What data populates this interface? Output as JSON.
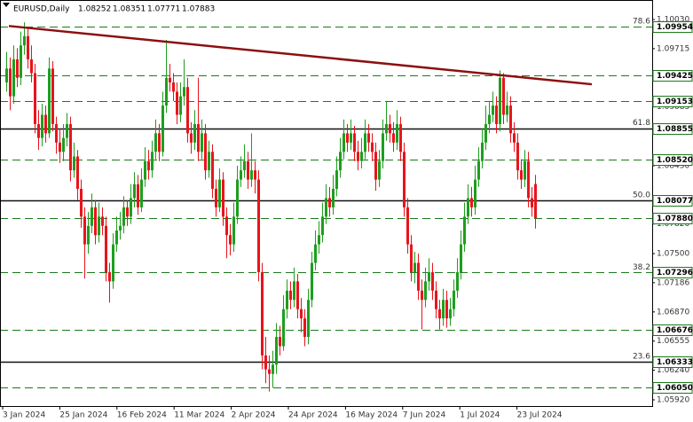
{
  "chart_data": {
    "type": "candlestick",
    "title": "EURUSD,Daily",
    "header_ohlc": [
      1.08252,
      1.08351,
      1.07771,
      1.07883
    ],
    "up_color": "#1e9e1e",
    "down_color": "#e8141c",
    "ylim": [
      1.0592,
      1.1003
    ],
    "yticks": [
      {
        "value": 1.1003,
        "label": "1.10030"
      },
      1.09715,
      1.09085,
      {
        "value": 1.0845,
        "label": "1.08450"
      },
      {
        "value": 1.0782,
        "label": "1.07820"
      },
      {
        "value": 1.075,
        "label": "1.07500"
      },
      1.07186,
      {
        "value": 1.0687,
        "label": "1.06870"
      },
      1.06555,
      {
        "value": 1.0624,
        "label": "1.06240"
      },
      {
        "value": 1.0592,
        "label": "1.05920"
      }
    ],
    "x_labels": [
      "3 Jan 2024",
      "25 Jan 2024",
      "16 Feb 2024",
      "11 Mar 2024",
      "2 Apr 2024",
      "24 Apr 2024",
      "16 May 2024",
      "7 Jun 2024",
      "1 Jul 2024",
      "23 Jul 2024"
    ],
    "levels": [
      {
        "price": 1.09954,
        "style": "dashed"
      },
      {
        "price": 1.09425,
        "style": "dashed"
      },
      {
        "price": 1.09153,
        "style": "dashed"
      },
      {
        "price": 1.08855,
        "style": "solid"
      },
      {
        "price": {
          "value": 1.0852,
          "label": "1.08520"
        },
        "style": "dashed"
      },
      {
        "price": 1.08077,
        "style": "solid"
      },
      {
        "price": {
          "value": 1.0788,
          "label": "1.07880"
        },
        "style": "dashed"
      },
      {
        "price": 1.07296,
        "style": "dashed"
      },
      {
        "price": 1.06676,
        "style": "dashed"
      },
      {
        "price": 1.06333,
        "style": "solid"
      },
      {
        "price": {
          "value": 1.0605,
          "label": "1.06050"
        },
        "style": "dashed"
      }
    ],
    "fib_levels": [
      {
        "level": 78.6,
        "price": 1.09954
      },
      {
        "level": 61.8,
        "price": 1.08855
      },
      {
        "level": {
          "value": 50,
          "label": "50.0"
        },
        "price": 1.08077
      },
      {
        "level": 38.2,
        "price": 1.07296
      },
      {
        "level": 23.6,
        "price": 1.06333
      }
    ],
    "trendline": {
      "y": [
        1.0996,
        1.0933
      ],
      "color": "#8b1010"
    },
    "candles": [
      [
        1.0935,
        1.0968,
        1.0925,
        1.095
      ],
      [
        1.095,
        1.0962,
        1.0905,
        1.092
      ],
      [
        1.092,
        1.0975,
        1.0912,
        1.096
      ],
      [
        1.096,
        1.0972,
        1.093,
        1.094
      ],
      [
        1.094,
        1.099,
        1.0932,
        1.0975
      ],
      [
        1.0975,
        1.1,
        1.0965,
        1.0985
      ],
      [
        1.0985,
        1.0995,
        1.095,
        1.096
      ],
      [
        1.096,
        1.0975,
        1.0935,
        1.0945
      ],
      [
        1.0945,
        1.0955,
        1.088,
        1.089
      ],
      [
        1.089,
        1.0905,
        1.0862,
        1.0875
      ],
      [
        1.0875,
        1.0912,
        1.0866,
        1.09
      ],
      [
        1.09,
        1.091,
        1.087,
        1.088
      ],
      [
        1.088,
        1.0962,
        1.0875,
        1.095
      ],
      [
        1.095,
        1.0958,
        1.0882,
        1.089
      ],
      [
        1.089,
        1.0898,
        1.0858,
        1.087
      ],
      [
        1.087,
        1.0885,
        1.0848,
        1.086
      ],
      [
        1.086,
        1.089,
        1.085,
        1.0875
      ],
      [
        1.0875,
        1.0902,
        1.0866,
        1.089
      ],
      [
        1.089,
        1.0898,
        1.0828,
        1.084
      ],
      [
        1.084,
        1.087,
        1.0832,
        1.0855
      ],
      [
        1.0855,
        1.0862,
        1.0808,
        1.082
      ],
      [
        1.082,
        1.083,
        1.0778,
        1.079
      ],
      [
        1.079,
        1.08,
        1.0723,
        1.076
      ],
      [
        1.076,
        1.0795,
        1.075,
        1.078
      ],
      [
        1.078,
        1.0815,
        1.0772,
        1.08
      ],
      [
        1.08,
        1.0808,
        1.076,
        1.077
      ],
      [
        1.077,
        1.0805,
        1.0762,
        1.079
      ],
      [
        1.079,
        1.08,
        1.077,
        1.078
      ],
      [
        1.078,
        1.079,
        1.072,
        1.073
      ],
      [
        1.073,
        1.074,
        1.0697,
        1.072
      ],
      [
        1.072,
        1.0772,
        1.0712,
        1.076
      ],
      [
        1.076,
        1.079,
        1.0752,
        1.0775
      ],
      [
        1.0775,
        1.0795,
        1.0765,
        1.078
      ],
      [
        1.078,
        1.0812,
        1.0772,
        1.08
      ],
      [
        1.08,
        1.0808,
        1.078,
        1.079
      ],
      [
        1.079,
        1.0825,
        1.0782,
        1.081
      ],
      [
        1.081,
        1.0838,
        1.08,
        1.0825
      ],
      [
        1.0825,
        1.0835,
        1.0792,
        1.08
      ],
      [
        1.08,
        1.0842,
        1.0795,
        1.083
      ],
      [
        1.083,
        1.0865,
        1.0822,
        1.085
      ],
      [
        1.085,
        1.0862,
        1.083,
        1.084
      ],
      [
        1.084,
        1.0872,
        1.0832,
        1.086
      ],
      [
        1.086,
        1.0895,
        1.0852,
        1.088
      ],
      [
        1.088,
        1.089,
        1.085,
        1.086
      ],
      [
        1.086,
        1.0925,
        1.0855,
        1.091
      ],
      [
        1.091,
        1.0981,
        1.0902,
        1.094
      ],
      [
        1.094,
        1.0955,
        1.0925,
        1.0935
      ],
      [
        1.0935,
        1.0945,
        1.0915,
        1.0925
      ],
      [
        1.0925,
        1.0935,
        1.089,
        1.09
      ],
      [
        1.09,
        1.0935,
        1.0892,
        1.092
      ],
      [
        1.092,
        1.096,
        1.091,
        1.093
      ],
      [
        1.093,
        1.094,
        1.087,
        1.088
      ],
      [
        1.088,
        1.0892,
        1.0858,
        1.087
      ],
      [
        1.087,
        1.0905,
        1.0862,
        1.089
      ],
      [
        1.089,
        1.094,
        1.085,
        1.086
      ],
      [
        1.086,
        1.0895,
        1.0852,
        1.088
      ],
      [
        1.088,
        1.089,
        1.083,
        1.084
      ],
      [
        1.084,
        1.0872,
        1.0832,
        1.086
      ],
      [
        1.086,
        1.0868,
        1.081,
        1.082
      ],
      [
        1.082,
        1.083,
        1.079,
        1.08
      ],
      [
        1.08,
        1.0842,
        1.0795,
        1.083
      ],
      [
        1.083,
        1.0838,
        1.078,
        1.079
      ],
      [
        1.079,
        1.08,
        1.0745,
        1.077
      ],
      [
        1.077,
        1.0782,
        1.0748,
        1.076
      ],
      [
        1.076,
        1.0805,
        1.0752,
        1.079
      ],
      [
        1.079,
        1.0845,
        1.0782,
        1.083
      ],
      [
        1.083,
        1.0855,
        1.0822,
        1.084
      ],
      [
        1.084,
        1.0868,
        1.0832,
        1.085
      ],
      [
        1.085,
        1.086,
        1.082,
        1.083
      ],
      [
        1.083,
        1.088,
        1.0822,
        1.084
      ],
      [
        1.084,
        1.085,
        1.0815,
        1.083
      ],
      [
        1.083,
        1.084,
        1.072,
        1.073
      ],
      [
        1.073,
        1.074,
        1.0625,
        1.064
      ],
      [
        1.064,
        1.066,
        1.061,
        1.0625
      ],
      [
        1.0625,
        1.064,
        1.0601,
        1.062
      ],
      [
        1.062,
        1.0645,
        1.0605,
        1.063
      ],
      [
        1.063,
        1.0675,
        1.062,
        1.066
      ],
      [
        1.066,
        1.0672,
        1.064,
        1.065
      ],
      [
        1.065,
        1.0705,
        1.0645,
        1.069
      ],
      [
        1.069,
        1.0722,
        1.068,
        1.071
      ],
      [
        1.071,
        1.072,
        1.069,
        1.07
      ],
      [
        1.07,
        1.0735,
        1.0692,
        1.072
      ],
      [
        1.072,
        1.0728,
        1.068,
        1.069
      ],
      [
        1.069,
        1.0702,
        1.0665,
        1.068
      ],
      [
        1.068,
        1.069,
        1.065,
        1.066
      ],
      [
        1.066,
        1.0712,
        1.0652,
        1.07
      ],
      [
        1.07,
        1.0752,
        1.0692,
        1.074
      ],
      [
        1.074,
        1.0775,
        1.0732,
        1.076
      ],
      [
        1.076,
        1.0785,
        1.075,
        1.077
      ],
      [
        1.077,
        1.0805,
        1.0762,
        1.079
      ],
      [
        1.079,
        1.0825,
        1.0782,
        1.081
      ],
      [
        1.081,
        1.0822,
        1.079,
        1.08
      ],
      [
        1.08,
        1.0835,
        1.0792,
        1.082
      ],
      [
        1.082,
        1.0855,
        1.0812,
        1.084
      ],
      [
        1.084,
        1.0875,
        1.0832,
        1.086
      ],
      [
        1.086,
        1.0895,
        1.0852,
        1.088
      ],
      [
        1.088,
        1.089,
        1.086,
        1.087
      ],
      [
        1.087,
        1.0895,
        1.0862,
        1.088
      ],
      [
        1.088,
        1.0888,
        1.085,
        1.086
      ],
      [
        1.086,
        1.0872,
        1.084,
        1.085
      ],
      [
        1.085,
        1.0875,
        1.0842,
        1.086
      ],
      [
        1.086,
        1.0895,
        1.0852,
        1.088
      ],
      [
        1.088,
        1.089,
        1.086,
        1.087
      ],
      [
        1.087,
        1.088,
        1.085,
        1.086
      ],
      [
        1.086,
        1.087,
        1.0818,
        1.083
      ],
      [
        1.083,
        1.0862,
        1.0822,
        1.085
      ],
      [
        1.085,
        1.0895,
        1.0842,
        1.088
      ],
      [
        1.088,
        1.0915,
        1.0872,
        1.089
      ],
      [
        1.089,
        1.09,
        1.087,
        1.088
      ],
      [
        1.088,
        1.0892,
        1.086,
        1.087
      ],
      [
        1.087,
        1.0905,
        1.0862,
        1.089
      ],
      [
        1.089,
        1.0898,
        1.085,
        1.086
      ],
      [
        1.086,
        1.087,
        1.079,
        1.08
      ],
      [
        1.08,
        1.081,
        1.075,
        1.076
      ],
      [
        1.076,
        1.077,
        1.072,
        1.073
      ],
      [
        1.073,
        1.0752,
        1.0718,
        1.074
      ],
      [
        1.074,
        1.075,
        1.07,
        1.071
      ],
      [
        1.071,
        1.0722,
        1.0668,
        1.07
      ],
      [
        1.07,
        1.0735,
        1.0692,
        1.072
      ],
      [
        1.072,
        1.0745,
        1.071,
        1.073
      ],
      [
        1.073,
        1.074,
        1.07,
        1.071
      ],
      [
        1.071,
        1.072,
        1.068,
        1.069
      ],
      [
        1.069,
        1.07,
        1.0668,
        1.068
      ],
      [
        1.068,
        1.0712,
        1.0672,
        1.07
      ],
      [
        1.07,
        1.071,
        1.067,
        1.068
      ],
      [
        1.068,
        1.0702,
        1.0672,
        1.069
      ],
      [
        1.069,
        1.0722,
        1.0682,
        1.071
      ],
      [
        1.071,
        1.0745,
        1.0702,
        1.073
      ],
      [
        1.073,
        1.0775,
        1.0722,
        1.076
      ],
      [
        1.076,
        1.0805,
        1.0752,
        1.079
      ],
      [
        1.079,
        1.0825,
        1.0782,
        1.081
      ],
      [
        1.081,
        1.0822,
        1.079,
        1.08
      ],
      [
        1.08,
        1.0845,
        1.0792,
        1.083
      ],
      [
        1.083,
        1.0865,
        1.0822,
        1.085
      ],
      [
        1.085,
        1.0885,
        1.0842,
        1.087
      ],
      [
        1.087,
        1.091,
        1.0862,
        1.089
      ],
      [
        1.089,
        1.0915,
        1.088,
        1.09
      ],
      [
        1.09,
        1.0925,
        1.0892,
        1.091
      ],
      [
        1.091,
        1.092,
        1.088,
        1.089
      ],
      [
        1.089,
        1.0948,
        1.0882,
        1.094
      ],
      [
        1.094,
        1.0945,
        1.089,
        1.09
      ],
      [
        1.09,
        1.0925,
        1.0892,
        1.091
      ],
      [
        1.091,
        1.092,
        1.087,
        1.088
      ],
      [
        1.088,
        1.0892,
        1.086,
        1.087
      ],
      [
        1.087,
        1.088,
        1.083,
        1.084
      ],
      [
        1.084,
        1.0852,
        1.082,
        1.083
      ],
      [
        1.083,
        1.0862,
        1.0822,
        1.085
      ],
      [
        1.085,
        1.086,
        1.08,
        1.081
      ],
      [
        1.081,
        1.0822,
        1.079,
        1.08
      ],
      [
        1.08252,
        1.08351,
        1.07771,
        1.07883
      ]
    ]
  }
}
